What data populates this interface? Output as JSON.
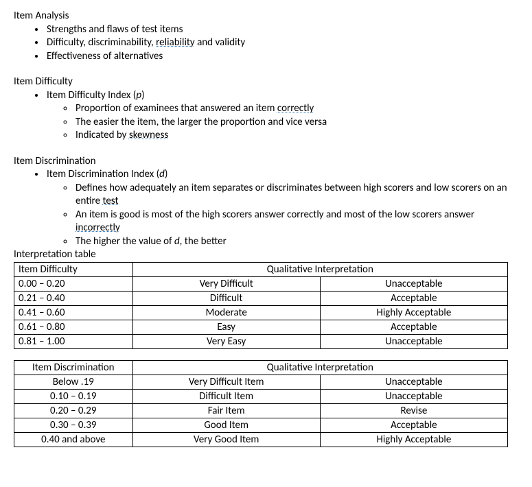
{
  "section_item_analysis": {
    "title": "Item Analysis",
    "bullets": [
      {
        "pre": "Strengths and flaws of test items",
        "dot": "",
        "post": ""
      },
      {
        "pre": "Difficulty, discriminability, ",
        "dot": "reliability",
        "post": " and validity"
      },
      {
        "pre": "Effectiveness of alternatives",
        "dot": "",
        "post": ""
      }
    ]
  },
  "section_item_difficulty": {
    "title": "Item Difficulty",
    "bullet_pre": "Item Difficulty Index (",
    "bullet_var": "p",
    "bullet_post": ")",
    "sub": [
      {
        "pre": "Proportion of examinees that answered an item ",
        "dot": "correctly",
        "post": ""
      },
      {
        "pre": "The easier the item, the larger the proportion and vice versa",
        "dot": "",
        "post": ""
      },
      {
        "pre": "Indicated by ",
        "dot": "skewness",
        "post": ""
      }
    ]
  },
  "section_item_discrimination": {
    "title": "Item Discrimination",
    "bullet_pre": "Item Discrimination Index (",
    "bullet_var": "d",
    "bullet_post": ")",
    "sub": [
      {
        "pre": "Defines how adequately an item separates or discriminates between high scorers and low scorers on an entire ",
        "dot": "test",
        "post": ""
      },
      {
        "pre": "An item is good is most of the high scorers answer correctly and most of the low scorers answer ",
        "dot": "incorrectly",
        "post": ""
      },
      {
        "pre": "The higher the value of ",
        "ital": "d",
        "post": ", the better"
      }
    ]
  },
  "interp_label": "Interpretation table",
  "table1": {
    "head_left": "Item Difficulty",
    "head_right": "Qualitative Interpretation",
    "rows": [
      {
        "a": "0.00 – 0.20",
        "b": "Very Difficult",
        "c": "Unacceptable"
      },
      {
        "a": "0.21 – 0.40",
        "b": "Difficult",
        "c": "Acceptable"
      },
      {
        "a": "0.41 – 0.60",
        "b": "Moderate",
        "c": "Highly Acceptable"
      },
      {
        "a": "0.61 – 0.80",
        "b": "Easy",
        "c": "Acceptable"
      },
      {
        "a": "0.81 – 1.00",
        "b": "Very Easy",
        "c": "Unacceptable"
      }
    ]
  },
  "table2": {
    "head_left": "Item Discrimination",
    "head_right": "Qualitative Interpretation",
    "rows": [
      {
        "a": "Below .19",
        "b": "Very Difficult Item",
        "c": "Unacceptable"
      },
      {
        "a": "0.10 – 0.19",
        "b": "Difficult Item",
        "c": "Unacceptable"
      },
      {
        "a": "0.20 – 0.29",
        "b": "Fair Item",
        "c": "Revise"
      },
      {
        "a": "0.30 – 0.39",
        "b": "Good Item",
        "c": "Acceptable"
      },
      {
        "a": "0.40 and above",
        "b": "Very Good Item",
        "c": "Highly Acceptable"
      }
    ]
  }
}
